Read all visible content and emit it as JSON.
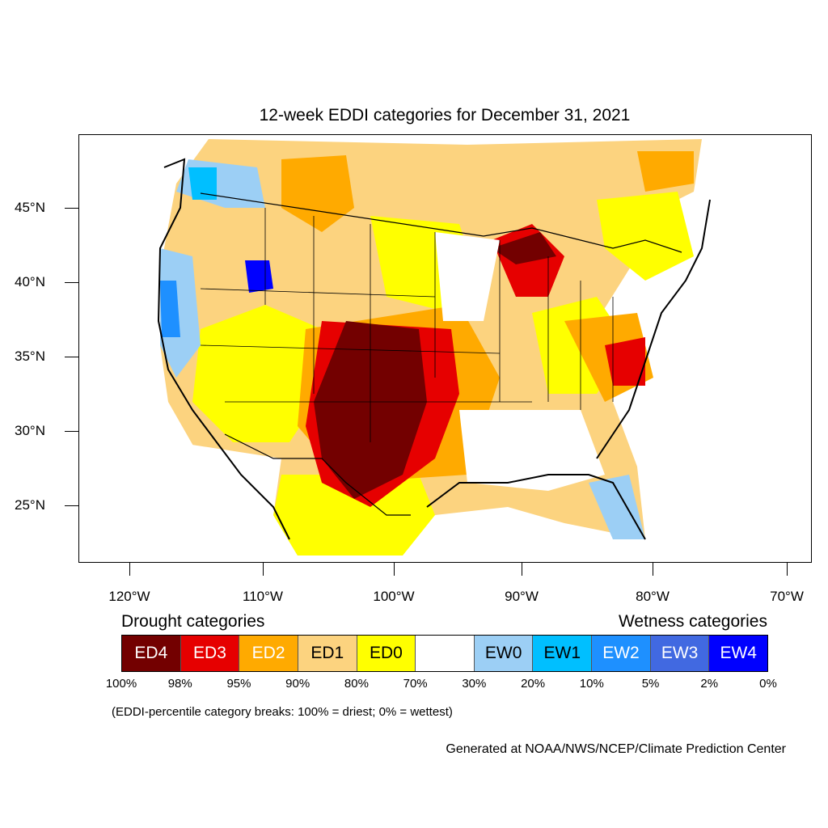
{
  "title": "12-week EDDI categories for December 31, 2021",
  "latitude_labels": [
    "45°N",
    "40°N",
    "35°N",
    "30°N",
    "25°N"
  ],
  "longitude_labels": [
    "120°W",
    "110°W",
    "100°W",
    "90°W",
    "80°W",
    "70°W"
  ],
  "legend": {
    "drought_heading": "Drought categories",
    "wetness_heading": "Wetness categories",
    "categories": [
      {
        "label": "ED4",
        "color": "#730000",
        "text_color": "#ffffff"
      },
      {
        "label": "ED3",
        "color": "#e60000",
        "text_color": "#ffffff"
      },
      {
        "label": "ED2",
        "color": "#ffaa00",
        "text_color": "#ffffff"
      },
      {
        "label": "ED1",
        "color": "#fcd37f",
        "text_color": "#000000"
      },
      {
        "label": "ED0",
        "color": "#ffff00",
        "text_color": "#000000"
      },
      {
        "label": "",
        "color": "#ffffff",
        "text_color": "#000000"
      },
      {
        "label": "EW0",
        "color": "#9ccff5",
        "text_color": "#000000"
      },
      {
        "label": "EW1",
        "color": "#00bfff",
        "text_color": "#000000"
      },
      {
        "label": "EW2",
        "color": "#1e90ff",
        "text_color": "#ffffff"
      },
      {
        "label": "EW3",
        "color": "#4169e1",
        "text_color": "#ffffff"
      },
      {
        "label": "EW4",
        "color": "#0000ff",
        "text_color": "#ffffff"
      }
    ],
    "percentiles": [
      "100%",
      "98%",
      "95%",
      "90%",
      "80%",
      "70%",
      "30%",
      "20%",
      "10%",
      "5%",
      "2%",
      "0%"
    ]
  },
  "note": "(EDDI-percentile category breaks: 100% = driest; 0% = wettest)",
  "credit": "Generated at NOAA/NWS/NCEP/Climate Prediction Center"
}
